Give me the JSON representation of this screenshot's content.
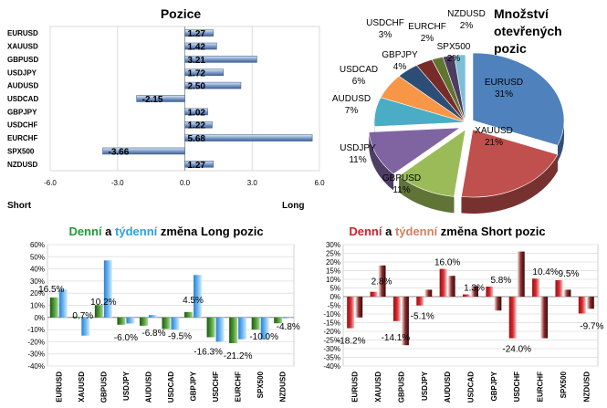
{
  "chart_data": [
    {
      "id": "positions",
      "type": "bar",
      "orientation": "horizontal",
      "title": "Pozice",
      "categories": [
        "EURUSD",
        "XAUUSD",
        "GBPUSD",
        "USDJPY",
        "AUDUSD",
        "USDCAD",
        "GBPJPY",
        "USDCHF",
        "EURCHF",
        "SPX500",
        "NZDUSD"
      ],
      "values": [
        1.27,
        1.42,
        3.21,
        1.72,
        2.5,
        -2.15,
        1.02,
        1.22,
        5.68,
        -3.66,
        1.27
      ],
      "value_labels": [
        "1.27",
        "1.42",
        "3.21",
        "1.72",
        "2.50",
        "-2.15",
        "1.02",
        "1.22",
        "5.68",
        "-3.66",
        "1.27"
      ],
      "xlim": [
        -6,
        6
      ],
      "xticks": [
        "-6.0",
        "-3.0",
        "0.0",
        "3.0",
        "6.0"
      ],
      "left_label": "Short",
      "right_label": "Long",
      "bar_color": "#6f93c4"
    },
    {
      "id": "open-positions",
      "type": "pie",
      "title_lines": [
        "Množství",
        "otevřených",
        "pozic"
      ],
      "slices": [
        {
          "label": "EURUSD",
          "value": 31,
          "text": "31%",
          "color": "#4f81bd"
        },
        {
          "label": "XAUUSD",
          "value": 21,
          "text": "21%",
          "color": "#c0504d"
        },
        {
          "label": "GBPUSD",
          "value": 11,
          "text": "11%",
          "color": "#9bbb59"
        },
        {
          "label": "USDJPY",
          "value": 11,
          "text": "11%",
          "color": "#8064a2"
        },
        {
          "label": "AUDUSD",
          "value": 7,
          "text": "7%",
          "color": "#4bacc6"
        },
        {
          "label": "USDCAD",
          "value": 6,
          "text": "6%",
          "color": "#f79646"
        },
        {
          "label": "GBPJPY",
          "value": 4,
          "text": "4%",
          "color": "#2c4d75"
        },
        {
          "label": "USDCHF",
          "value": 3,
          "text": "3%",
          "color": "#772c2a"
        },
        {
          "label": "EURCHF",
          "value": 2,
          "text": "2%",
          "color": "#5f7530"
        },
        {
          "label": "SPX500",
          "value": 2,
          "text": "2%",
          "color": "#4d3b62"
        },
        {
          "label": "NZDUSD",
          "value": 2,
          "text": "2%",
          "color": "#7cbfd6"
        }
      ]
    },
    {
      "id": "long-change",
      "type": "bar",
      "title_parts": [
        {
          "text": "Denní",
          "color": "#1f9a3c"
        },
        {
          "text": " a ",
          "color": "#000000"
        },
        {
          "text": "týdenní",
          "color": "#2aa0e0"
        },
        {
          "text": " změna Long pozic",
          "color": "#000000"
        }
      ],
      "categories": [
        "EURUSD",
        "XAUUSD",
        "GBPUSD",
        "USDJPY",
        "AUDUSD",
        "USDCAD",
        "GBPJPY",
        "USDCHF",
        "EURCHF",
        "SPX500",
        "NZDUSD"
      ],
      "series": [
        {
          "name": "Denní",
          "color": "#3a8a2a",
          "values": [
            16.5,
            0.7,
            10.2,
            -6.0,
            -6.8,
            -9.5,
            4.5,
            -16.3,
            -21.2,
            -10.0,
            -4.8
          ]
        },
        {
          "name": "Týdenní",
          "color": "#5aabec",
          "values": [
            23,
            -15,
            47,
            -5,
            2,
            -10,
            35,
            -20,
            -18,
            -18,
            0
          ]
        }
      ],
      "value_labels": [
        "16.5%",
        "0.7%",
        "10.2%",
        "-6.0%",
        "-6.8%",
        "-9.5%",
        "4.5%",
        "-16.3%",
        "-21.2%",
        "-10.0%",
        "-4.8%"
      ],
      "ylim": [
        -40,
        60
      ],
      "yticks": [
        "60%",
        "50%",
        "40%",
        "30%",
        "20%",
        "10%",
        "0%",
        "-10%",
        "-20%",
        "-30%",
        "-40%"
      ]
    },
    {
      "id": "short-change",
      "type": "bar",
      "title_parts": [
        {
          "text": "Denní",
          "color": "#d0202a"
        },
        {
          "text": " a ",
          "color": "#000000"
        },
        {
          "text": "týdenní",
          "color": "#d08060"
        },
        {
          "text": " změna Short pozic",
          "color": "#000000"
        }
      ],
      "categories": [
        "EURUSD",
        "XAUUSD",
        "GBPUSD",
        "USDJPY",
        "AUDUSD",
        "USDCAD",
        "GBPJPY",
        "USDCHF",
        "EURCHF",
        "SPX500",
        "NZDUSD"
      ],
      "series": [
        {
          "name": "Denní",
          "color": "#b81418",
          "values": [
            -18.2,
            2.8,
            -14.1,
            -5.1,
            16.0,
            1.3,
            5.8,
            -24.0,
            10.4,
            9.5,
            -9.7
          ]
        },
        {
          "name": "Týdenní",
          "color": "#5a1012",
          "values": [
            -12,
            18,
            -28,
            4,
            12,
            6,
            -8,
            26,
            -24,
            4,
            -7
          ]
        }
      ],
      "value_labels": [
        "-18.2%",
        "2.8%",
        "-14.1%",
        "-5.1%",
        "16.0%",
        "1.3%",
        "5.8%",
        "-24.0%",
        "10.4%",
        "9.5%",
        "-9.7%"
      ],
      "ylim": [
        -40,
        30
      ],
      "yticks": [
        "30%",
        "25%",
        "20%",
        "15%",
        "10%",
        "5%",
        "0%",
        "-5%",
        "-10%",
        "-15%",
        "-20%",
        "-25%",
        "-30%",
        "-35%",
        "-40%"
      ]
    }
  ]
}
